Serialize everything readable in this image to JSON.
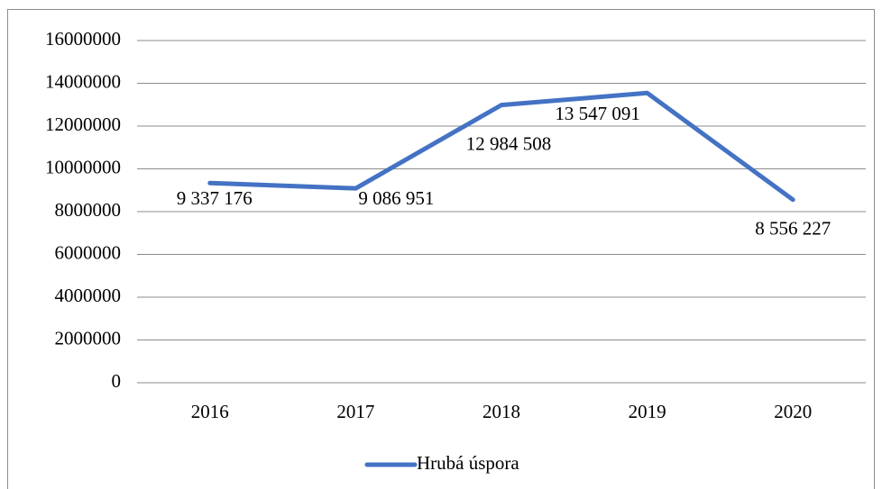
{
  "chart_data": {
    "type": "line",
    "categories": [
      "2016",
      "2017",
      "2018",
      "2019",
      "2020"
    ],
    "series": [
      {
        "name": "Hrubá úspora",
        "color": "#4472c4",
        "values": [
          9337176,
          9086951,
          12984508,
          13547091,
          8556227
        ],
        "value_labels": [
          "9 337 176",
          "9 086 951",
          "12 984 508",
          "13 547 091",
          "8 556 227"
        ]
      }
    ],
    "ylim": [
      0,
      16000000
    ],
    "yticks": [
      0,
      2000000,
      4000000,
      6000000,
      8000000,
      10000000,
      12000000,
      14000000,
      16000000
    ],
    "grid": true,
    "legend": "bottom"
  }
}
